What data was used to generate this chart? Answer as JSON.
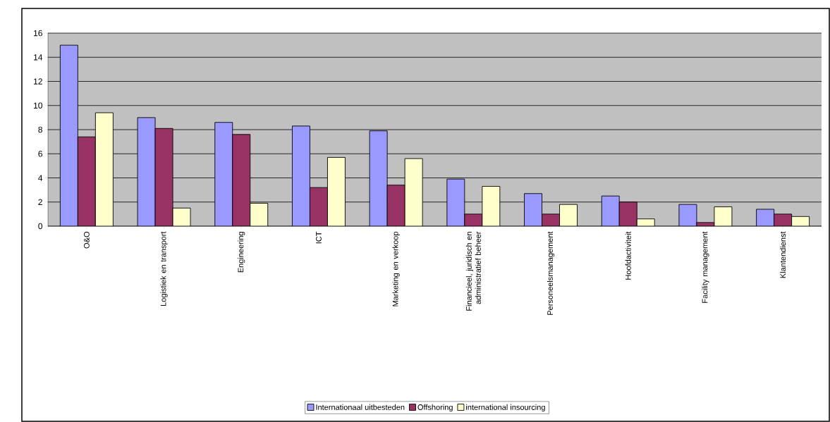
{
  "chart_data": {
    "type": "bar",
    "categories": [
      "O&O",
      "Logistiek en transport",
      "Engineering",
      "ICT",
      "Marketing en verkoop",
      "Financieel, juridisch en administratief beheer",
      "Personeelsmanagement",
      "Hoofdactiviteit",
      "Facility management",
      "Klantendienst"
    ],
    "series": [
      {
        "name": "Internationaal uitbesteden",
        "color": "#9999ff",
        "values": [
          15,
          9,
          8.6,
          8.3,
          7.9,
          3.9,
          2.7,
          2.5,
          1.8,
          1.4
        ]
      },
      {
        "name": "Offshoring",
        "color": "#993366",
        "values": [
          7.4,
          8.1,
          7.6,
          3.2,
          3.4,
          1.0,
          1.0,
          2.0,
          0.3,
          1.0
        ]
      },
      {
        "name": "international insourcing",
        "color": "#ffffcc",
        "values": [
          9.4,
          1.5,
          1.9,
          5.7,
          5.6,
          3.3,
          1.8,
          0.6,
          1.6,
          0.8
        ]
      }
    ],
    "ylim": [
      0,
      16
    ],
    "yticks": [
      0,
      2,
      4,
      6,
      8,
      10,
      12,
      14,
      16
    ],
    "grid": "y",
    "legend": "bottom"
  }
}
